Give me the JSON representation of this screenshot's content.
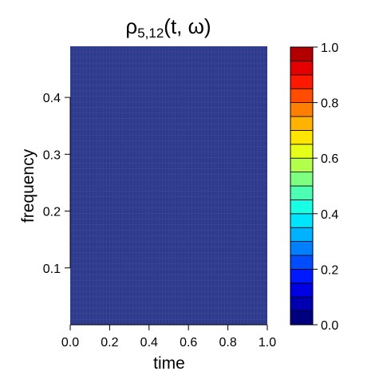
{
  "chart_data": {
    "type": "heatmap",
    "title": {
      "symbol": "ρ",
      "subscript": "5,12",
      "argument": "(t, ω)"
    },
    "xlabel": "time",
    "ylabel": "frequency",
    "xlim": [
      0,
      1
    ],
    "ylim": [
      0,
      0.49
    ],
    "x_ticks": [
      0,
      0.2,
      0.4,
      0.6,
      0.8,
      1.0
    ],
    "x_tick_labels": [
      "0.0",
      "0.2",
      "0.4",
      "0.6",
      "0.8",
      "1.0"
    ],
    "y_ticks": [
      0.1,
      0.2,
      0.3,
      0.4
    ],
    "y_tick_labels": [
      "0.1",
      "0.2",
      "0.3",
      "0.4"
    ],
    "grid_x_count": 60,
    "grid_y_count": 50,
    "field_value": 0.1,
    "colorbar": {
      "range": [
        0,
        1
      ],
      "breaks": [
        0,
        0.05,
        0.1,
        0.15,
        0.2,
        0.25,
        0.3,
        0.35,
        0.4,
        0.45,
        0.5,
        0.55,
        0.6,
        0.65,
        0.7,
        0.75,
        0.8,
        0.85,
        0.9,
        0.95,
        1.0
      ],
      "colors": [
        "#00007F",
        "#0000B2",
        "#0000E5",
        "#0019FF",
        "#004CFF",
        "#007FFF",
        "#00B2FF",
        "#00E5FF",
        "#19FFE5",
        "#4CFFB2",
        "#7FFF7F",
        "#B2FF4C",
        "#E5FF19",
        "#FFE500",
        "#FFB200",
        "#FF7F00",
        "#FF4C00",
        "#FF1900",
        "#E50000",
        "#B20000",
        "#7F0000"
      ],
      "ticks": [
        0,
        0.2,
        0.4,
        0.6,
        0.8,
        1.0
      ],
      "tick_labels": [
        "0.0",
        "0.2",
        "0.4",
        "0.6",
        "0.8",
        "1.0"
      ]
    },
    "field_color": "#2E3A8C",
    "gridline_color": "#4A5AA8"
  }
}
